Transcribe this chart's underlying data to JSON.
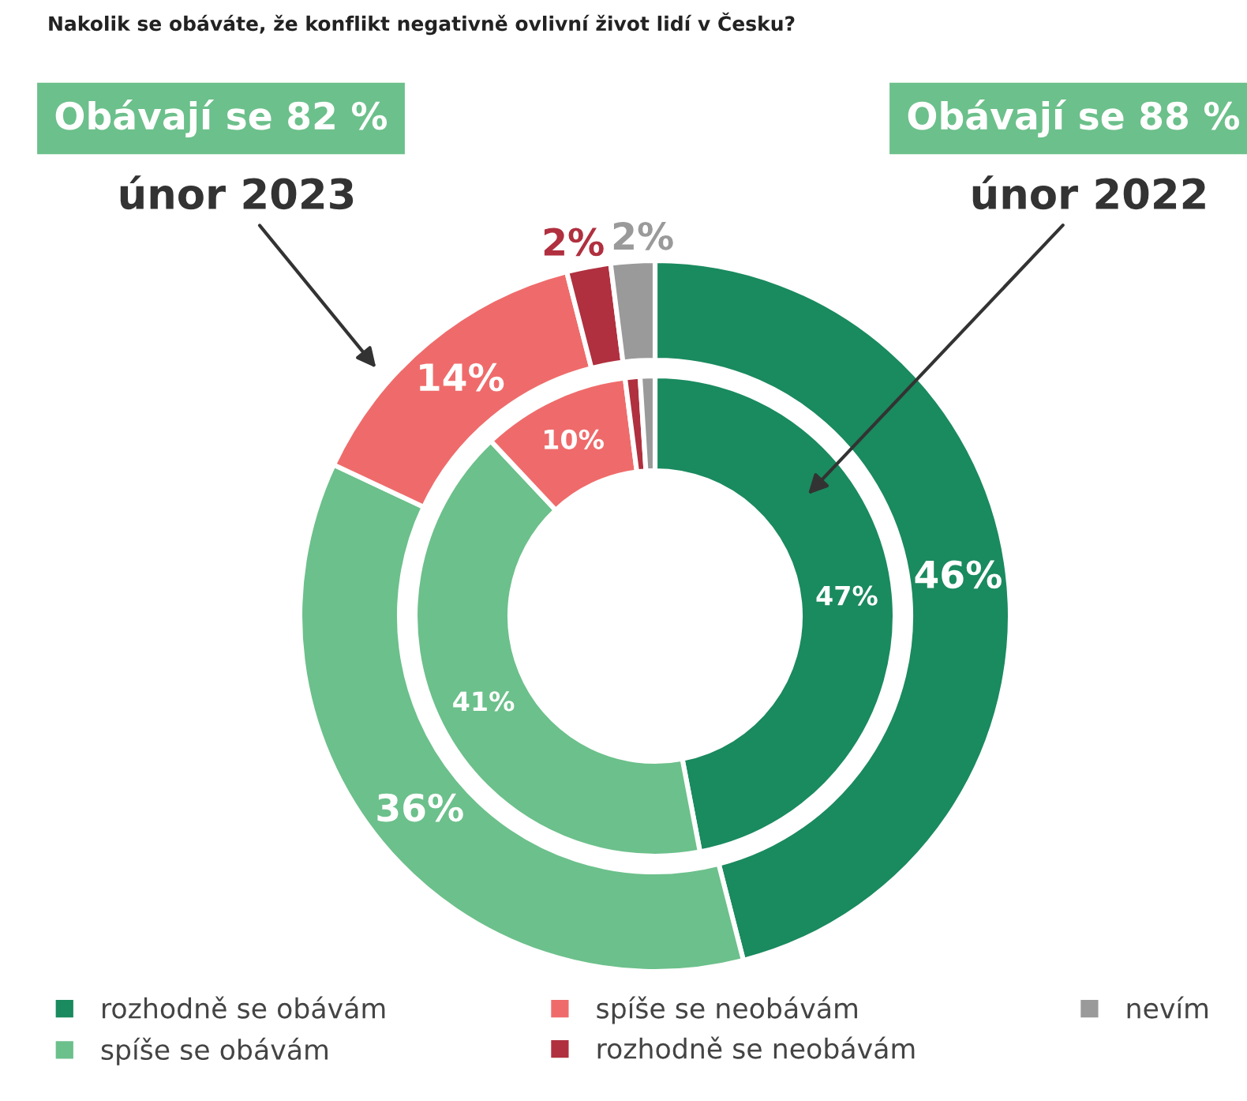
{
  "chart_data": {
    "type": "donut",
    "title": "Nakolik se obáváte, že konflikt negativně ovlivní život lidí v Česku?",
    "categories": [
      "rozhodně se obávám",
      "spíše se obávám",
      "spíše se neobávám",
      "rozhodně se neobávám",
      "nevím"
    ],
    "colors": [
      "#1a8a5f",
      "#6cc08b",
      "#ef6b6b",
      "#b0303f",
      "#9a9a9a"
    ],
    "series": [
      {
        "name": "únor 2023",
        "values": [
          46,
          36,
          14,
          2,
          2
        ],
        "value_labels": [
          "46%",
          "36%",
          "14%",
          "2%",
          "2%"
        ]
      },
      {
        "name": "únor 2022",
        "values": [
          47,
          41,
          10,
          1,
          1
        ],
        "value_labels": [
          "47%",
          "41%",
          "10%",
          null,
          null
        ]
      }
    ],
    "annotations": [
      "Obávají se 82 %",
      "Obávají se 88 %"
    ],
    "legend": "bottom"
  }
}
